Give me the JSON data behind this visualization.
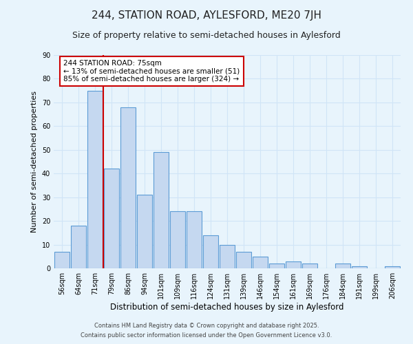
{
  "title": "244, STATION ROAD, AYLESFORD, ME20 7JH",
  "subtitle": "Size of property relative to semi-detached houses in Aylesford",
  "xlabel": "Distribution of semi-detached houses by size in Aylesford",
  "ylabel": "Number of semi-detached properties",
  "bar_labels": [
    "56sqm",
    "64sqm",
    "71sqm",
    "79sqm",
    "86sqm",
    "94sqm",
    "101sqm",
    "109sqm",
    "116sqm",
    "124sqm",
    "131sqm",
    "139sqm",
    "146sqm",
    "154sqm",
    "161sqm",
    "169sqm",
    "176sqm",
    "184sqm",
    "191sqm",
    "199sqm",
    "206sqm"
  ],
  "bar_values": [
    7,
    18,
    75,
    42,
    68,
    31,
    49,
    24,
    24,
    14,
    10,
    7,
    5,
    2,
    3,
    2,
    0,
    2,
    1,
    0,
    1
  ],
  "bar_color": "#c5d8f0",
  "bar_edge_color": "#5b9bd5",
  "property_line_x": 2,
  "annotation_text": "244 STATION ROAD: 75sqm\n← 13% of semi-detached houses are smaller (51)\n85% of semi-detached houses are larger (324) →",
  "annotation_box_color": "#ffffff",
  "annotation_box_edge": "#cc0000",
  "property_line_color": "#cc0000",
  "ylim": [
    0,
    90
  ],
  "yticks": [
    0,
    10,
    20,
    30,
    40,
    50,
    60,
    70,
    80,
    90
  ],
  "grid_color": "#d0e4f7",
  "background_color": "#e8f4fc",
  "footer1": "Contains HM Land Registry data © Crown copyright and database right 2025.",
  "footer2": "Contains public sector information licensed under the Open Government Licence v3.0.",
  "title_fontsize": 11,
  "subtitle_fontsize": 9,
  "xlabel_fontsize": 8.5,
  "ylabel_fontsize": 8,
  "tick_fontsize": 7,
  "annotation_fontsize": 7.5,
  "footer_fontsize": 6
}
